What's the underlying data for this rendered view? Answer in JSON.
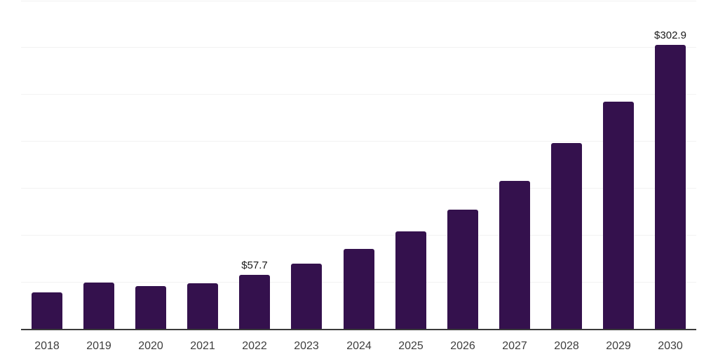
{
  "chart_data": {
    "type": "bar",
    "title": "",
    "xlabel": "",
    "ylabel": "",
    "categories": [
      "2018",
      "2019",
      "2020",
      "2021",
      "2022",
      "2023",
      "2024",
      "2025",
      "2026",
      "2027",
      "2028",
      "2029",
      "2030"
    ],
    "values": [
      38.5,
      49.4,
      45.6,
      48.6,
      57.7,
      69.3,
      84.9,
      103.6,
      127.3,
      157.9,
      197.8,
      241.8,
      302.9
    ],
    "data_labels": {
      "2022": "$57.7",
      "2030": "$302.9"
    },
    "ylim": [
      0,
      350
    ],
    "gridline_step": 50,
    "grid": true,
    "legend": false,
    "y_tick_labels_visible": false,
    "colors": {
      "bar": "#34114d",
      "axis_line": "#3a3a3a",
      "gridline": "#f2f2f2",
      "tick_label": "#3d3d3d",
      "value_label": "#1a1a1a",
      "background": "#ffffff"
    }
  }
}
